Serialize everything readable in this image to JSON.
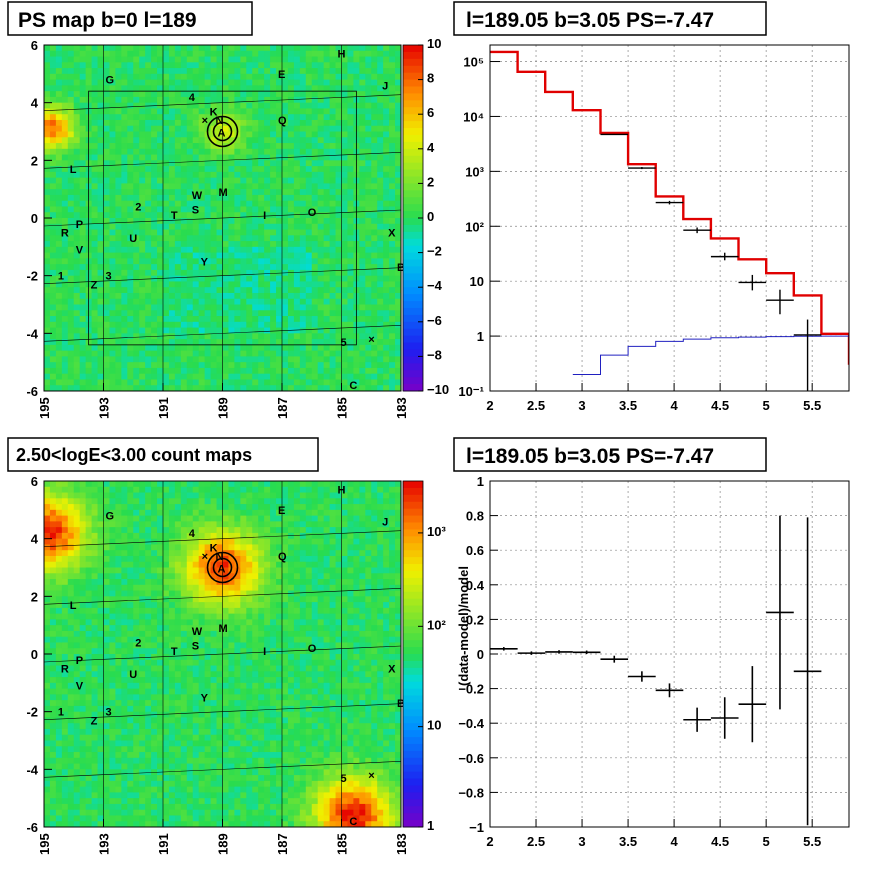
{
  "panels": {
    "map1": {
      "title": "PS map b=0 l=189"
    },
    "spec": {
      "title": "l=189.05 b=3.05 PS=-7.47"
    },
    "map2": {
      "title": "2.50<logE<3.00 count maps"
    },
    "res": {
      "title": "l=189.05 b=3.05 PS=-7.47",
      "ylabel": "(data-model)/model"
    }
  },
  "map_axes": {
    "x_ticks": [
      "195",
      "193",
      "191",
      "189",
      "187",
      "185",
      "183"
    ],
    "y_ticks": [
      "6",
      "4",
      "2",
      "0",
      "-2",
      "-4",
      "-6"
    ]
  },
  "colorbar1": {
    "ticks": [
      "10",
      "8",
      "6",
      "4",
      "2",
      "0",
      "−2",
      "−4",
      "−6",
      "−8",
      "−10"
    ]
  },
  "colorbar2": {
    "ticks": [
      "10³",
      "10²",
      "10",
      "1"
    ]
  },
  "sources": [
    {
      "label": "H",
      "l": 185.0,
      "b": 5.7
    },
    {
      "label": "E",
      "l": 187.0,
      "b": 5.0
    },
    {
      "label": "G",
      "l": 192.8,
      "b": 4.8
    },
    {
      "label": "J",
      "l": 183.5,
      "b": 4.6
    },
    {
      "label": "4",
      "l": 190.0,
      "b": 4.2
    },
    {
      "label": "K",
      "l": 189.3,
      "b": 3.7
    },
    {
      "label": "N",
      "l": 189.1,
      "b": 3.4
    },
    {
      "label": "Q",
      "l": 187.0,
      "b": 3.4
    },
    {
      "label": "L",
      "l": 194.0,
      "b": 1.7
    },
    {
      "label": "W",
      "l": 189.9,
      "b": 0.8
    },
    {
      "label": "M",
      "l": 189.0,
      "b": 0.9
    },
    {
      "label": "2",
      "l": 191.8,
      "b": 0.4
    },
    {
      "label": "S",
      "l": 189.9,
      "b": 0.3
    },
    {
      "label": "T",
      "l": 190.6,
      "b": 0.1
    },
    {
      "label": "I",
      "l": 187.5,
      "b": 0.1
    },
    {
      "label": "O",
      "l": 186.0,
      "b": 0.2
    },
    {
      "label": "R",
      "l": 194.3,
      "b": -0.5
    },
    {
      "label": "P",
      "l": 193.8,
      "b": -0.2
    },
    {
      "label": "U",
      "l": 192.0,
      "b": -0.7
    },
    {
      "label": "X",
      "l": 183.3,
      "b": -0.5
    },
    {
      "label": "V",
      "l": 193.8,
      "b": -1.1
    },
    {
      "label": "Y",
      "l": 189.6,
      "b": -1.5
    },
    {
      "label": "1",
      "l": 194.4,
      "b": -2.0
    },
    {
      "label": "3",
      "l": 192.8,
      "b": -2.0
    },
    {
      "label": "Z",
      "l": 193.3,
      "b": -2.3
    },
    {
      "label": "B",
      "l": 183.0,
      "b": -1.7
    },
    {
      "label": "5",
      "l": 184.9,
      "b": -4.3
    },
    {
      "label": "C",
      "l": 184.6,
      "b": -5.8
    }
  ],
  "chart_data": [
    {
      "type": "heatmap",
      "title": "PS map b=0 l=189",
      "xlim": [
        195,
        183
      ],
      "ylim": [
        -6,
        6
      ],
      "zlim": [
        -10,
        10
      ],
      "hotspots": [
        {
          "l": 194.7,
          "b": 3.1,
          "value": 8
        },
        {
          "l": 189,
          "b": 3.0,
          "value": 4
        }
      ]
    },
    {
      "type": "line",
      "title": "l=189.05 b=3.05 PS=-7.47",
      "xlim": [
        2,
        5.9
      ],
      "ylim": [
        0.1,
        200000
      ],
      "log_y": true,
      "x_ticks": [
        "2",
        "2.5",
        "3",
        "3.5",
        "4",
        "4.5",
        "5",
        "5.5"
      ],
      "y_ticks": [
        "10⁻¹",
        "1",
        "10",
        "10²",
        "10³",
        "10⁴",
        "10⁵"
      ],
      "edges": [
        2.0,
        2.3,
        2.6,
        2.9,
        3.2,
        3.5,
        3.8,
        4.1,
        4.4,
        4.7,
        5.0,
        5.3,
        5.6,
        5.9
      ],
      "series": [
        {
          "color": "#e00000",
          "values": [
            150000,
            65000,
            28000,
            13000,
            5000,
            1350,
            350,
            135,
            60,
            25,
            14,
            5.5,
            1.1,
            0.3
          ]
        },
        {
          "color": "#2020c0",
          "values": [
            null,
            null,
            null,
            0.2,
            0.45,
            0.65,
            0.8,
            0.88,
            0.93,
            0.96,
            0.98,
            0.99,
            1.0,
            1.0
          ]
        }
      ],
      "points": [
        {
          "x": 3.35,
          "y": 4700,
          "xerr": 0.15,
          "lo": 4600,
          "hi": 4800
        },
        {
          "x": 3.65,
          "y": 1150,
          "xerr": 0.15,
          "lo": 1100,
          "hi": 1200
        },
        {
          "x": 3.95,
          "y": 270,
          "xerr": 0.15,
          "lo": 250,
          "hi": 290
        },
        {
          "x": 4.25,
          "y": 85,
          "xerr": 0.15,
          "lo": 75,
          "hi": 95
        },
        {
          "x": 4.55,
          "y": 28,
          "xerr": 0.15,
          "lo": 24,
          "hi": 33
        },
        {
          "x": 4.85,
          "y": 9.5,
          "xerr": 0.15,
          "lo": 6.8,
          "hi": 13.0
        },
        {
          "x": 5.15,
          "y": 4.5,
          "xerr": 0.15,
          "lo": 2.5,
          "hi": 7.0
        },
        {
          "x": 5.45,
          "y": 1.05,
          "xerr": 0.15,
          "lo": 0.1,
          "hi": 2.0
        }
      ]
    },
    {
      "type": "heatmap",
      "title": "2.50<logE<3.00 count maps",
      "xlim": [
        195,
        183
      ],
      "ylim": [
        -6,
        6
      ],
      "zlim": [
        1,
        2000
      ],
      "log_z": true,
      "hotspots": [
        {
          "l": 194.9,
          "b": 4.2,
          "value": 1500
        },
        {
          "l": 189,
          "b": 3.0,
          "value": 800
        },
        {
          "l": 184.6,
          "b": -5.6,
          "value": 1500
        }
      ]
    },
    {
      "type": "scatter",
      "title": "l=189.05 b=3.05 PS=-7.47",
      "ylabel": "(data-model)/model",
      "xlim": [
        2,
        5.9
      ],
      "ylim": [
        -1,
        1
      ],
      "x_ticks": [
        "2",
        "2.5",
        "3",
        "3.5",
        "4",
        "4.5",
        "5",
        "5.5"
      ],
      "y_ticks": [
        "−1",
        "−0.8",
        "−0.6",
        "−0.4",
        "−0.2",
        "0",
        "0.2",
        "0.4",
        "0.6",
        "0.8",
        "1"
      ],
      "points": [
        {
          "x": 2.15,
          "y": 0.03,
          "xerr": 0.15,
          "err": 0.01
        },
        {
          "x": 2.45,
          "y": 0.005,
          "xerr": 0.15,
          "err": 0.01
        },
        {
          "x": 2.75,
          "y": 0.012,
          "xerr": 0.15,
          "err": 0.01
        },
        {
          "x": 3.05,
          "y": 0.01,
          "xerr": 0.15,
          "err": 0.01
        },
        {
          "x": 3.35,
          "y": -0.03,
          "xerr": 0.15,
          "err": 0.02
        },
        {
          "x": 3.65,
          "y": -0.13,
          "xerr": 0.15,
          "err": 0.03
        },
        {
          "x": 3.95,
          "y": -0.21,
          "xerr": 0.15,
          "err": 0.04
        },
        {
          "x": 4.25,
          "y": -0.38,
          "xerr": 0.15,
          "err": 0.07
        },
        {
          "x": 4.55,
          "y": -0.37,
          "xerr": 0.15,
          "err": 0.12
        },
        {
          "x": 4.85,
          "y": -0.29,
          "xerr": 0.15,
          "err": 0.22
        },
        {
          "x": 5.15,
          "y": 0.24,
          "xerr": 0.15,
          "err": 0.56
        },
        {
          "x": 5.45,
          "y": -0.1,
          "xerr": 0.15,
          "err": 0.89
        }
      ]
    }
  ]
}
